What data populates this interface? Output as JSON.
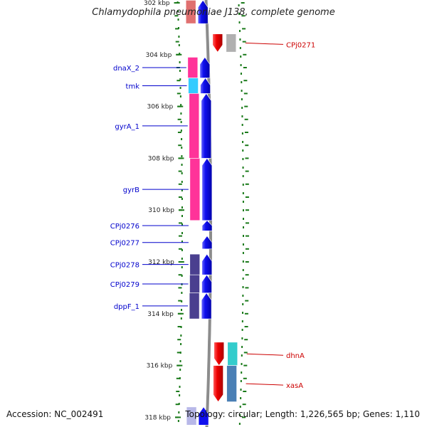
{
  "title": "Chlamydophila pneumoniae J138, complete genome",
  "footer": {
    "accession": "Accession: NC_002491",
    "topology": "Topology: circular; Length: 1,226,565 bp; Genes: 1,110"
  },
  "colors": {
    "forward_label": "#0000cc",
    "reverse_label": "#cc0000",
    "tick": "#1a7a1a",
    "backbone": "#8c8c8c"
  },
  "kbp_ticks": [
    "302 kbp",
    "304 kbp",
    "306 kbp",
    "308 kbp",
    "310 kbp",
    "312 kbp",
    "314 kbp",
    "316 kbp",
    "318 kbp"
  ],
  "forward_genes": [
    {
      "label": "",
      "start_kbp": 301.9,
      "end_kbp": 302.8,
      "color": "#e07070"
    },
    {
      "label": "dnaX_2",
      "start_kbp": 304.1,
      "end_kbp": 304.9,
      "color": "#ff3399"
    },
    {
      "label": "tmk",
      "start_kbp": 304.9,
      "end_kbp": 305.5,
      "color": "#33ccff"
    },
    {
      "label": "gyrA_1",
      "start_kbp": 305.5,
      "end_kbp": 308.0,
      "color": "#ff3399"
    },
    {
      "label": "gyrB",
      "start_kbp": 308.0,
      "end_kbp": 310.4,
      "color": "#ff3399"
    },
    {
      "label": "CPj0276",
      "start_kbp": 310.4,
      "end_kbp": 310.8,
      "color": ""
    },
    {
      "label": "CPj0277",
      "start_kbp": 311.0,
      "end_kbp": 311.5,
      "color": ""
    },
    {
      "label": "CPj0278",
      "start_kbp": 311.7,
      "end_kbp": 312.5,
      "color": "#4a3f8f"
    },
    {
      "label": "CPj0279",
      "start_kbp": 312.5,
      "end_kbp": 313.2,
      "color": "#4a3f8f"
    },
    {
      "label": "dppF_1",
      "start_kbp": 313.2,
      "end_kbp": 314.2,
      "color": "#4a3f8f"
    },
    {
      "label": "",
      "start_kbp": 317.6,
      "end_kbp": 318.3,
      "color": "#b8b8e8"
    }
  ],
  "reverse_genes": [
    {
      "label": "CPj0271",
      "start_kbp": 303.2,
      "end_kbp": 303.9,
      "color": "#b0b0b0"
    },
    {
      "label": "dhnA",
      "start_kbp": 315.1,
      "end_kbp": 316.0,
      "color": "#33cccc"
    },
    {
      "label": "xasA",
      "start_kbp": 316.0,
      "end_kbp": 317.4,
      "color": "#4a7fb5"
    }
  ]
}
